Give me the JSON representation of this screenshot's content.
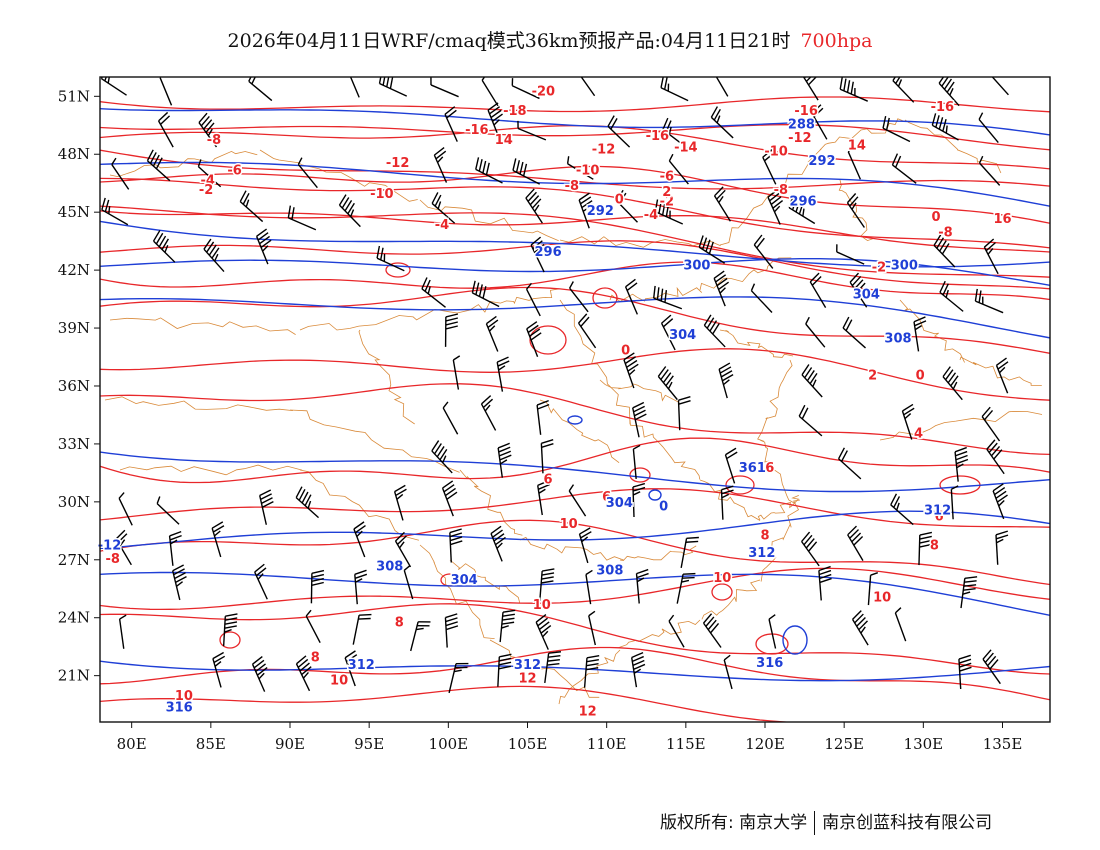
{
  "title": {
    "main": "2026年04月11日WRF/cmaq模式36km预报产品:04月11日21时",
    "level": "700hpa"
  },
  "colors": {
    "temperature": "#e8272a",
    "height": "#1f3fd6",
    "boundary": "#d98a3a",
    "wind": "#000000",
    "level_text": "#e8272a"
  },
  "axes": {
    "lat_labels": [
      "51N",
      "48N",
      "45N",
      "42N",
      "39N",
      "36N",
      "33N",
      "30N",
      "27N",
      "24N",
      "21N"
    ],
    "lat_values": [
      51,
      48,
      45,
      42,
      39,
      36,
      33,
      30,
      27,
      24,
      21
    ],
    "lon_labels": [
      "80E",
      "85E",
      "90E",
      "95E",
      "100E",
      "105E",
      "110E",
      "115E",
      "120E",
      "125E",
      "130E",
      "135E"
    ],
    "lon_values": [
      80,
      85,
      90,
      95,
      100,
      105,
      110,
      115,
      120,
      125,
      130,
      135
    ],
    "lon_range": [
      78,
      138
    ],
    "lat_range": [
      18.6,
      52.0
    ]
  },
  "contour_labels": {
    "temperature": [
      {
        "text": "-20",
        "lon": 106.0,
        "lat": 51.3
      },
      {
        "text": "-18",
        "lon": 104.2,
        "lat": 50.3
      },
      {
        "text": "-16",
        "lon": 101.8,
        "lat": 49.3
      },
      {
        "text": "-16",
        "lon": 113.2,
        "lat": 49.0
      },
      {
        "text": "-16",
        "lon": 122.6,
        "lat": 50.3
      },
      {
        "text": "-16",
        "lon": 131.2,
        "lat": 50.5
      },
      {
        "text": "14",
        "lon": 103.5,
        "lat": 48.8
      },
      {
        "text": "-14",
        "lon": 115.0,
        "lat": 48.4
      },
      {
        "text": "14",
        "lon": 125.8,
        "lat": 48.5
      },
      {
        "text": "-12",
        "lon": 96.8,
        "lat": 47.6
      },
      {
        "text": "-12",
        "lon": 109.8,
        "lat": 48.3
      },
      {
        "text": "-12",
        "lon": 122.2,
        "lat": 48.9
      },
      {
        "text": "-10",
        "lon": 95.8,
        "lat": 46.0
      },
      {
        "text": "-10",
        "lon": 108.8,
        "lat": 47.2
      },
      {
        "text": "-10",
        "lon": 120.7,
        "lat": 48.2
      },
      {
        "text": "-8",
        "lon": 85.2,
        "lat": 48.8
      },
      {
        "text": "-8",
        "lon": 107.8,
        "lat": 46.4
      },
      {
        "text": "-8",
        "lon": 121.0,
        "lat": 46.2
      },
      {
        "text": "-6",
        "lon": 86.5,
        "lat": 47.2
      },
      {
        "text": "-6",
        "lon": 113.8,
        "lat": 46.9
      },
      {
        "text": "-4",
        "lon": 84.8,
        "lat": 46.7
      },
      {
        "text": "-4",
        "lon": 99.6,
        "lat": 44.4
      },
      {
        "text": "-4",
        "lon": 112.8,
        "lat": 44.9
      },
      {
        "text": "-2",
        "lon": 84.7,
        "lat": 46.2
      },
      {
        "text": "-2",
        "lon": 113.8,
        "lat": 45.6
      },
      {
        "text": "-2",
        "lon": 127.2,
        "lat": 42.2
      },
      {
        "text": "0",
        "lon": 110.8,
        "lat": 45.7
      },
      {
        "text": "2",
        "lon": 113.8,
        "lat": 46.1
      },
      {
        "text": "0",
        "lon": 130.8,
        "lat": 44.8
      },
      {
        "text": "-8",
        "lon": 131.4,
        "lat": 44.0
      },
      {
        "text": "16",
        "lon": 135.0,
        "lat": 44.7
      },
      {
        "text": "0",
        "lon": 111.2,
        "lat": 37.9
      },
      {
        "text": "2",
        "lon": 126.8,
        "lat": 36.6
      },
      {
        "text": "0",
        "lon": 129.8,
        "lat": 36.6
      },
      {
        "text": "4",
        "lon": 129.7,
        "lat": 33.6
      },
      {
        "text": "6",
        "lon": 106.3,
        "lat": 31.2
      },
      {
        "text": "6",
        "lon": 110.0,
        "lat": 30.3
      },
      {
        "text": "6",
        "lon": 120.3,
        "lat": 31.8
      },
      {
        "text": "6",
        "lon": 131.0,
        "lat": 29.3
      },
      {
        "text": "8",
        "lon": 120.0,
        "lat": 28.3
      },
      {
        "text": "8",
        "lon": 130.7,
        "lat": 27.8
      },
      {
        "text": "-8",
        "lon": 78.8,
        "lat": 27.1
      },
      {
        "text": "10",
        "lon": 107.6,
        "lat": 28.9
      },
      {
        "text": "10",
        "lon": 117.3,
        "lat": 26.1
      },
      {
        "text": "10",
        "lon": 105.9,
        "lat": 24.7
      },
      {
        "text": "10",
        "lon": 127.4,
        "lat": 25.1
      },
      {
        "text": "8",
        "lon": 96.9,
        "lat": 23.8
      },
      {
        "text": "8",
        "lon": 91.6,
        "lat": 22.0
      },
      {
        "text": "10",
        "lon": 93.1,
        "lat": 20.8
      },
      {
        "text": "10",
        "lon": 83.3,
        "lat": 20.0
      },
      {
        "text": "12",
        "lon": 105.0,
        "lat": 20.9
      },
      {
        "text": "12",
        "lon": 108.8,
        "lat": 19.2
      }
    ],
    "height": [
      {
        "text": "288",
        "lon": 122.3,
        "lat": 49.6
      },
      {
        "text": "292",
        "lon": 123.6,
        "lat": 47.7
      },
      {
        "text": "296",
        "lon": 122.4,
        "lat": 45.6
      },
      {
        "text": "292",
        "lon": 109.6,
        "lat": 45.1
      },
      {
        "text": "296",
        "lon": 106.3,
        "lat": 43.0
      },
      {
        "text": "300",
        "lon": 115.7,
        "lat": 42.3
      },
      {
        "text": "300",
        "lon": 128.8,
        "lat": 42.3
      },
      {
        "text": "304",
        "lon": 126.4,
        "lat": 40.8
      },
      {
        "text": "304",
        "lon": 114.8,
        "lat": 38.7
      },
      {
        "text": "308",
        "lon": 128.4,
        "lat": 38.5
      },
      {
        "text": "304",
        "lon": 110.8,
        "lat": 30.0
      },
      {
        "text": "0",
        "lon": 113.6,
        "lat": 29.8
      },
      {
        "text": "361",
        "lon": 119.2,
        "lat": 31.8
      },
      {
        "text": "312",
        "lon": 130.9,
        "lat": 29.6
      },
      {
        "text": "312",
        "lon": 119.8,
        "lat": 27.4
      },
      {
        "text": "-12",
        "lon": 78.6,
        "lat": 27.8
      },
      {
        "text": "308",
        "lon": 96.3,
        "lat": 26.7
      },
      {
        "text": "304",
        "lon": 101.0,
        "lat": 26.0
      },
      {
        "text": "308",
        "lon": 110.2,
        "lat": 26.5
      },
      {
        "text": "312",
        "lon": 94.5,
        "lat": 21.6
      },
      {
        "text": "312",
        "lon": 105.0,
        "lat": 21.6
      },
      {
        "text": "316",
        "lon": 120.3,
        "lat": 21.7
      },
      {
        "text": "316",
        "lon": 83.0,
        "lat": 19.4
      }
    ]
  },
  "footer": {
    "copyright": "版权所有: 南京大学",
    "company": "南京创蓝科技有限公司"
  }
}
